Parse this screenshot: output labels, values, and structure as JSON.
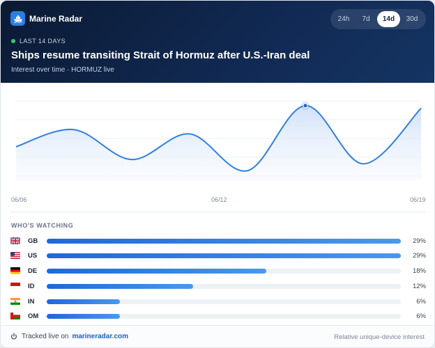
{
  "app": {
    "name": "Marine Radar",
    "logo_icon": "ship-icon"
  },
  "ranges": [
    {
      "label": "24h",
      "active": false
    },
    {
      "label": "7d",
      "active": false
    },
    {
      "label": "14d",
      "active": true
    },
    {
      "label": "30d",
      "active": false
    }
  ],
  "header": {
    "live_label": "LAST 14 DAYS",
    "title": "Ships resume transiting Strait of Hormuz after U.S.-Iran deal",
    "subtitle": "Interest over time · HORMUZ live"
  },
  "chart_data": {
    "type": "area",
    "x_ticks": [
      "06/06",
      "06/12",
      "06/19"
    ],
    "values": [
      40,
      60,
      25,
      55,
      12,
      88,
      20,
      85
    ],
    "ylim": [
      0,
      100
    ],
    "grid": true,
    "highlight_peak": true
  },
  "watching": {
    "title": "WHO'S WATCHING",
    "countries": [
      {
        "code": "GB",
        "flag": "gb-flag-icon",
        "share": 29,
        "pct_label": "29%"
      },
      {
        "code": "US",
        "flag": "us-flag-icon",
        "share": 29,
        "pct_label": "29%"
      },
      {
        "code": "DE",
        "flag": "de-flag-icon",
        "share": 18,
        "pct_label": "18%"
      },
      {
        "code": "ID",
        "flag": "id-flag-icon",
        "share": 12,
        "pct_label": "12%"
      },
      {
        "code": "IN",
        "flag": "in-flag-icon",
        "share": 6,
        "pct_label": "6%"
      },
      {
        "code": "OM",
        "flag": "om-flag-icon",
        "share": 6,
        "pct_label": "6%"
      }
    ]
  },
  "footer": {
    "tracked_label": "Tracked live on",
    "link": "marineradar.com",
    "note": "Relative unique-device interest"
  },
  "colors": {
    "accent": "#2b7de9",
    "header_bg": "#0b1a33",
    "line": "#2f7fe0",
    "live": "#2ecc71"
  }
}
